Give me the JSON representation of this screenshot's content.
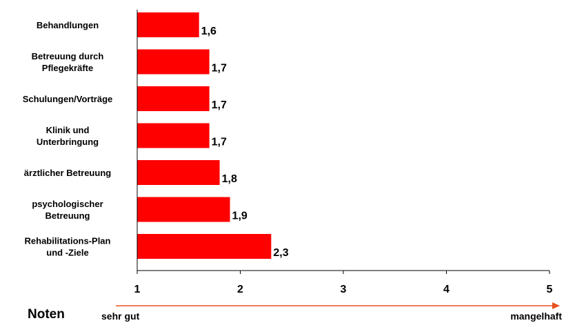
{
  "chart_data": {
    "type": "bar",
    "orientation": "horizontal",
    "categories": [
      [
        "Behandlungen"
      ],
      [
        "Betreuung durch",
        "Pflegekräfte"
      ],
      [
        "Schulungen/Vorträge"
      ],
      [
        "Klinik und",
        "Unterbringung"
      ],
      [
        "ärztlicher Betreuung"
      ],
      [
        "psychologischer",
        "Betreuung"
      ],
      [
        "Rehabilitations-Plan",
        "und -Ziele"
      ]
    ],
    "values": [
      1.6,
      1.7,
      1.7,
      1.7,
      1.8,
      1.9,
      2.3
    ],
    "value_labels": [
      "1,6",
      "1,7",
      "1,7",
      "1,7",
      "1,8",
      "1,9",
      "2,3"
    ],
    "xlim": [
      1,
      5
    ],
    "xticks": [
      "1",
      "2",
      "3",
      "4",
      "5"
    ],
    "bar_color": "#ff0000",
    "grid": false,
    "legend": "none"
  },
  "scale": {
    "title": "Noten",
    "left_label": "sehr gut",
    "right_label": "mangelhaft",
    "arrow_color": "#e8501e"
  }
}
